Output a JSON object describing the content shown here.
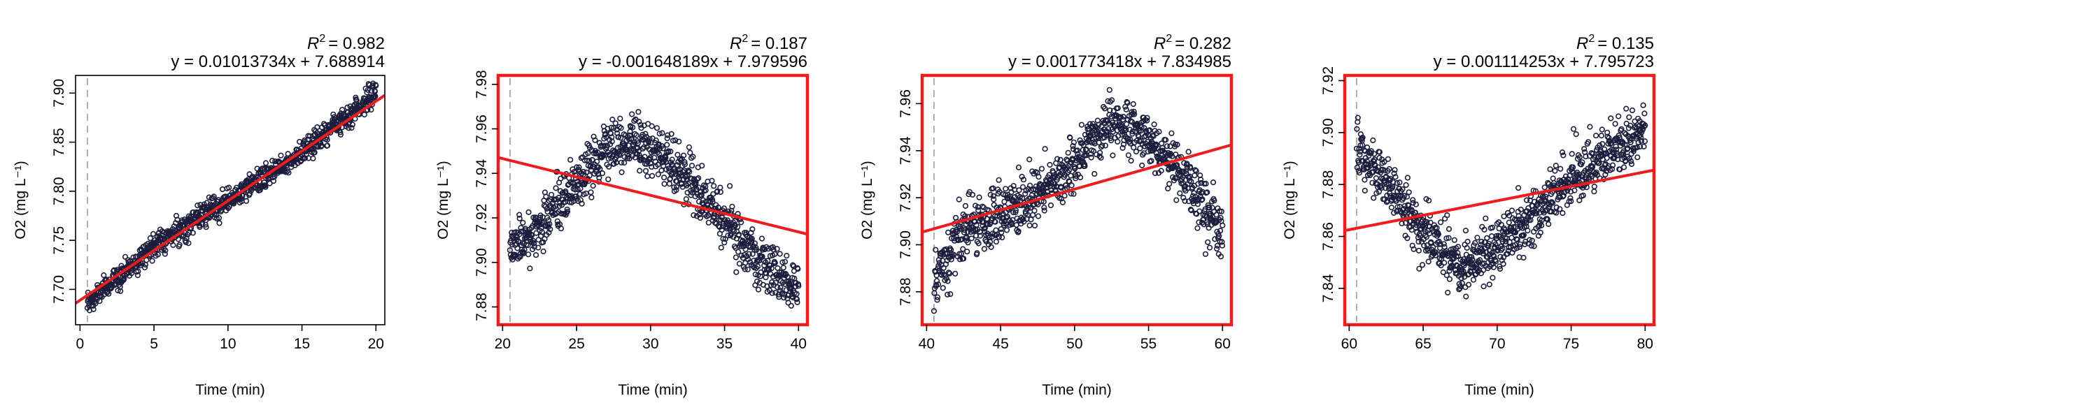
{
  "chart_data": [
    {
      "type": "scatter",
      "panel": 1,
      "xlabel": "Time (min)",
      "ylabel": "O2 (mg L⁻¹)",
      "xlim": [
        -0.3,
        20.6
      ],
      "ylim": [
        7.664,
        7.918
      ],
      "xticks": [
        "0",
        "5",
        "10",
        "15",
        "20"
      ],
      "yticks": [
        "7.70",
        "7.75",
        "7.80",
        "7.85",
        "7.90"
      ],
      "r2_label": "R",
      "r2_value": "= 0.982",
      "equation": "y = 0.01013734x + 7.688914",
      "fit": {
        "slope": 0.01013734,
        "intercept": 7.688914
      },
      "marker_x": 0.5,
      "highlighted": false,
      "trend": {
        "x": [
          0.5,
          5,
          10,
          15,
          20
        ],
        "y": [
          7.685,
          7.745,
          7.79,
          7.84,
          7.9
        ]
      },
      "x_range": [
        0.5,
        20
      ],
      "noise": 0.008
    },
    {
      "type": "scatter",
      "panel": 2,
      "xlabel": "Time (min)",
      "ylabel": "O2 (mg L⁻¹)",
      "xlim": [
        19.7,
        40.6
      ],
      "ylim": [
        7.872,
        7.984
      ],
      "xticks": [
        "20",
        "25",
        "30",
        "35",
        "40"
      ],
      "yticks": [
        "7.88",
        "7.90",
        "7.92",
        "7.94",
        "7.96",
        "7.98"
      ],
      "r2_label": "R",
      "r2_value": "= 0.187",
      "equation": "y = -0.001648189x + 7.979596",
      "fit": {
        "slope": -0.001648189,
        "intercept": 7.979596
      },
      "marker_x": 20.5,
      "highlighted": true,
      "trend": {
        "x": [
          20.5,
          22,
          25,
          27.5,
          30,
          32.5,
          35,
          37.5,
          40
        ],
        "y": [
          7.908,
          7.912,
          7.935,
          7.955,
          7.952,
          7.938,
          7.918,
          7.898,
          7.888
        ]
      },
      "x_range": [
        20.5,
        40
      ],
      "noise": 0.008
    },
    {
      "type": "scatter",
      "panel": 3,
      "xlabel": "Time (min)",
      "ylabel": "O2 (mg L⁻¹)",
      "xlim": [
        39.7,
        60.6
      ],
      "ylim": [
        7.866,
        7.972
      ],
      "xticks": [
        "40",
        "45",
        "50",
        "55",
        "60"
      ],
      "yticks": [
        "7.88",
        "7.90",
        "7.92",
        "7.94",
        "7.96"
      ],
      "r2_label": "R",
      "r2_value": "= 0.282",
      "equation": "y = 0.001773418x + 7.834985",
      "fit": {
        "slope": 0.001773418,
        "intercept": 7.834985
      },
      "marker_x": 40.5,
      "highlighted": true,
      "trend": {
        "x": [
          40.5,
          41,
          42.5,
          45,
          47.5,
          50,
          52.5,
          55,
          57.5,
          60
        ],
        "y": [
          7.88,
          7.89,
          7.905,
          7.912,
          7.92,
          7.935,
          7.952,
          7.945,
          7.928,
          7.905
        ]
      },
      "x_range": [
        40.5,
        60
      ],
      "noise": 0.008
    },
    {
      "type": "scatter",
      "panel": 4,
      "xlabel": "Time (min)",
      "ylabel": "O2 (mg L⁻¹)",
      "xlim": [
        59.7,
        80.6
      ],
      "ylim": [
        7.826,
        7.922
      ],
      "xticks": [
        "60",
        "65",
        "70",
        "75",
        "80"
      ],
      "yticks": [
        "7.84",
        "7.86",
        "7.88",
        "7.90",
        "7.92"
      ],
      "r2_label": "R",
      "r2_value": "= 0.135",
      "equation": "y = 0.001114253x + 7.795723",
      "fit": {
        "slope": 0.001114253,
        "intercept": 7.795723
      },
      "marker_x": 60.5,
      "highlighted": true,
      "trend": {
        "x": [
          60.5,
          61,
          62.5,
          65,
          67.5,
          70,
          72.5,
          75,
          77.5,
          80
        ],
        "y": [
          7.895,
          7.89,
          7.88,
          7.862,
          7.848,
          7.857,
          7.868,
          7.882,
          7.892,
          7.9
        ]
      },
      "x_range": [
        60.5,
        80
      ],
      "noise": 0.007
    }
  ]
}
